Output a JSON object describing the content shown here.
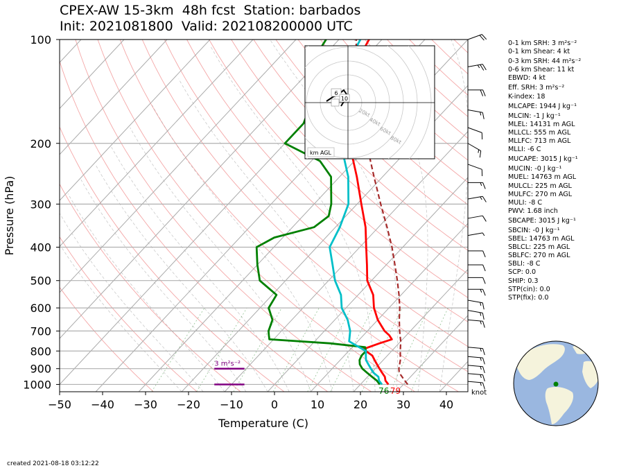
{
  "title": {
    "line1": "CPEX-AW 15-3km  48h fcst  Station: barbados",
    "line2": "Init: 2021081800  Valid: 202108200000 UTC"
  },
  "created": "created 2021-08-18 03:12:22",
  "stats": [
    "0-1 km SRH: 3 m²s⁻²",
    "0-1 km Shear: 4 kt",
    "0-3 km SRH: 44 m²s⁻²",
    "0-6 km Shear: 11 kt",
    "EBWD: 4 kt",
    "Eff. SRH: 3 m²s⁻²",
    "K-index: 18",
    "MLCAPE: 1944 J kg⁻¹",
    "MLCIN: -1 J kg⁻¹",
    "MLEL: 14131 m AGL",
    "MLLCL: 555 m AGL",
    "MLLFC: 713 m AGL",
    "MLLI: -6 C",
    "MUCAPE: 3015 J kg⁻¹",
    "MUCIN: -0 J kg⁻¹",
    "MUEL: 14763 m AGL",
    "MULCL: 225 m AGL",
    "MULFC: 270 m AGL",
    "MULI: -8 C",
    "PWV: 1.68 inch",
    "SBCAPE: 3015 J kg⁻¹",
    "SBCIN: -0 J kg⁻¹",
    "SBEL: 14763 m AGL",
    "SBLCL: 225 m AGL",
    "SBLFC: 270 m AGL",
    "SBLI: -8 C",
    "SCP: 0.0",
    "SHIP: 0.3",
    "STP(cin): 0.0",
    "STP(fix): 0.0"
  ],
  "stat_gaps": [
    2,
    5,
    7,
    8,
    13,
    14,
    20,
    21
  ],
  "chart_data": {
    "type": "line",
    "subtype": "skew-T log-P sounding",
    "xlabel": "Temperature (C)",
    "ylabel": "Pressure (hPa)",
    "xlim": [
      -50,
      45
    ],
    "ylim": [
      1050,
      100
    ],
    "y_scale": "log",
    "x_ticks": [
      -50,
      -40,
      -30,
      -20,
      -10,
      0,
      10,
      20,
      30,
      40
    ],
    "x_tick_labels": [
      "−50",
      "−40",
      "−30",
      "−20",
      "−10",
      "0",
      "10",
      "20",
      "30",
      "40"
    ],
    "y_ticks": [
      100,
      200,
      300,
      400,
      500,
      600,
      700,
      800,
      900,
      1000
    ],
    "skew_deg_per_log_decade": 75,
    "series": [
      {
        "role": "temperature",
        "color": "#ff0000",
        "points": [
          [
            1000,
            26.5
          ],
          [
            975,
            25
          ],
          [
            950,
            24
          ],
          [
            925,
            22.5
          ],
          [
            900,
            21
          ],
          [
            875,
            19.5
          ],
          [
            850,
            18
          ],
          [
            825,
            16.5
          ],
          [
            805,
            14.5
          ],
          [
            790,
            13
          ],
          [
            760,
            15.5
          ],
          [
            740,
            17.5
          ],
          [
            720,
            16
          ],
          [
            700,
            14
          ],
          [
            650,
            10
          ],
          [
            600,
            6.5
          ],
          [
            550,
            3.5
          ],
          [
            500,
            -1
          ],
          [
            450,
            -4.5
          ],
          [
            400,
            -8.5
          ],
          [
            350,
            -13
          ],
          [
            300,
            -19
          ],
          [
            250,
            -26
          ],
          [
            200,
            -35
          ],
          [
            175,
            -40
          ],
          [
            150,
            -46
          ],
          [
            125,
            -50
          ],
          [
            100,
            -53
          ]
        ]
      },
      {
        "role": "dewpoint",
        "color": "#008000",
        "points": [
          [
            1000,
            24.5
          ],
          [
            975,
            23
          ],
          [
            950,
            21
          ],
          [
            925,
            19
          ],
          [
            900,
            17
          ],
          [
            875,
            15.5
          ],
          [
            850,
            14.5
          ],
          [
            825,
            14
          ],
          [
            800,
            14
          ],
          [
            780,
            13
          ],
          [
            760,
            4
          ],
          [
            740,
            -11
          ],
          [
            720,
            -12
          ],
          [
            700,
            -13
          ],
          [
            650,
            -14.5
          ],
          [
            600,
            -18
          ],
          [
            550,
            -19
          ],
          [
            500,
            -26
          ],
          [
            450,
            -30
          ],
          [
            400,
            -34
          ],
          [
            375,
            -32
          ],
          [
            350,
            -25
          ],
          [
            325,
            -24
          ],
          [
            300,
            -26
          ],
          [
            250,
            -32
          ],
          [
            225,
            -38
          ],
          [
            200,
            -50
          ],
          [
            175,
            -50
          ],
          [
            150,
            -53
          ],
          [
            125,
            -58
          ],
          [
            110,
            -62
          ],
          [
            100,
            -63
          ]
        ]
      },
      {
        "role": "wet-bulb",
        "color": "#00bfc8",
        "points": [
          [
            1000,
            25
          ],
          [
            975,
            23.5
          ],
          [
            950,
            22.5
          ],
          [
            925,
            20.5
          ],
          [
            900,
            19
          ],
          [
            875,
            17.5
          ],
          [
            850,
            16
          ],
          [
            825,
            15
          ],
          [
            800,
            14
          ],
          [
            775,
            11
          ],
          [
            750,
            8
          ],
          [
            700,
            6
          ],
          [
            650,
            3
          ],
          [
            600,
            -1
          ],
          [
            550,
            -4
          ],
          [
            500,
            -8.5
          ],
          [
            450,
            -12.5
          ],
          [
            400,
            -17
          ],
          [
            350,
            -19
          ],
          [
            300,
            -22
          ],
          [
            250,
            -28
          ],
          [
            200,
            -37
          ],
          [
            175,
            -42
          ],
          [
            150,
            -47
          ],
          [
            125,
            -52
          ],
          [
            100,
            -55
          ]
        ]
      },
      {
        "role": "parcel",
        "color": "#a52a2a",
        "dashed": true,
        "points": [
          [
            1000,
            31
          ],
          [
            975,
            29.5
          ],
          [
            950,
            28
          ],
          [
            925,
            26.5
          ],
          [
            900,
            25.5
          ],
          [
            850,
            24
          ],
          [
            800,
            22
          ],
          [
            750,
            20
          ],
          [
            700,
            17.5
          ],
          [
            650,
            15
          ],
          [
            600,
            12.5
          ],
          [
            550,
            9.5
          ],
          [
            500,
            6
          ],
          [
            450,
            2
          ],
          [
            400,
            -2.5
          ],
          [
            350,
            -8
          ],
          [
            300,
            -14.5
          ],
          [
            250,
            -22
          ],
          [
            200,
            -31
          ],
          [
            150,
            -42
          ],
          [
            120,
            -50
          ],
          [
            100,
            -56
          ]
        ]
      }
    ],
    "surface_labels": [
      {
        "text": "76",
        "color": "#008000",
        "pressure": 1012,
        "temperature": 25.5
      },
      {
        "text": "79",
        "color": "#ff0000",
        "pressure": 1012,
        "temperature": 28.2
      }
    ],
    "srh_bars": [
      {
        "label": "3 m²s⁻²",
        "color": "#800080",
        "pressure": 900,
        "x_from": -14,
        "x_to": -7
      },
      {
        "label": "",
        "color": "#800080",
        "pressure": 1000,
        "x_from": -14,
        "x_to": -7
      }
    ],
    "wind_units": "knot",
    "wind_barbs": [
      {
        "p": 100,
        "kt": 20,
        "dir": 70
      },
      {
        "p": 120,
        "kt": 25,
        "dir": 80
      },
      {
        "p": 140,
        "kt": 20,
        "dir": 90
      },
      {
        "p": 160,
        "kt": 15,
        "dir": 100
      },
      {
        "p": 180,
        "kt": 10,
        "dir": 110
      },
      {
        "p": 200,
        "kt": 15,
        "dir": 120
      },
      {
        "p": 230,
        "kt": 10,
        "dir": 110
      },
      {
        "p": 260,
        "kt": 15,
        "dir": 90
      },
      {
        "p": 290,
        "kt": 15,
        "dir": 80
      },
      {
        "p": 330,
        "kt": 10,
        "dir": 80
      },
      {
        "p": 370,
        "kt": 5,
        "dir": 80
      },
      {
        "p": 410,
        "kt": 10,
        "dir": 90
      },
      {
        "p": 450,
        "kt": 10,
        "dir": 90
      },
      {
        "p": 490,
        "kt": 10,
        "dir": 90
      },
      {
        "p": 530,
        "kt": 15,
        "dir": 90
      },
      {
        "p": 570,
        "kt": 15,
        "dir": 100
      },
      {
        "p": 610,
        "kt": 15,
        "dir": 100
      },
      {
        "p": 650,
        "kt": 15,
        "dir": 95
      },
      {
        "p": 780,
        "kt": 15,
        "dir": 95
      },
      {
        "p": 830,
        "kt": 15,
        "dir": 95
      },
      {
        "p": 880,
        "kt": 15,
        "dir": 95
      },
      {
        "p": 930,
        "kt": 15,
        "dir": 95
      },
      {
        "p": 980,
        "kt": 15,
        "dir": 95
      }
    ],
    "hodograph": {
      "ring_labels": [
        "20kt",
        "40kt",
        "60kt",
        "80kt"
      ],
      "height_labels": [
        "6",
        "10"
      ],
      "legend": "km AGL"
    }
  }
}
